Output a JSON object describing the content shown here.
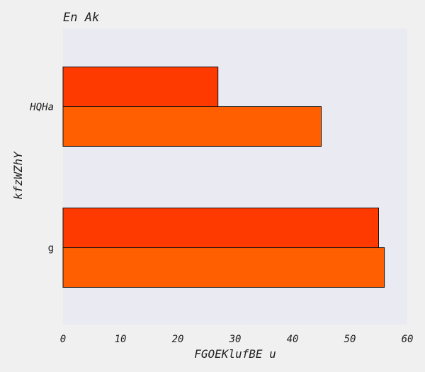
{
  "chart_data": {
    "type": "bar",
    "orientation": "horizontal",
    "title": "En Ak",
    "xlabel": "FGOEKlufBE u",
    "ylabel": "kfzWZhY",
    "categories": [
      "g",
      "HQHa"
    ],
    "series": [
      {
        "values": [
          56,
          45
        ],
        "color": "#ff5f00"
      },
      {
        "values": [
          55,
          27
        ],
        "color": "#ff3a00"
      }
    ],
    "xlim": [
      0,
      60
    ],
    "xticks": [
      0,
      10,
      20,
      30,
      40,
      50,
      60
    ],
    "grid": false,
    "plot_background": "#eaeaf2",
    "edge_color": "#111111"
  }
}
